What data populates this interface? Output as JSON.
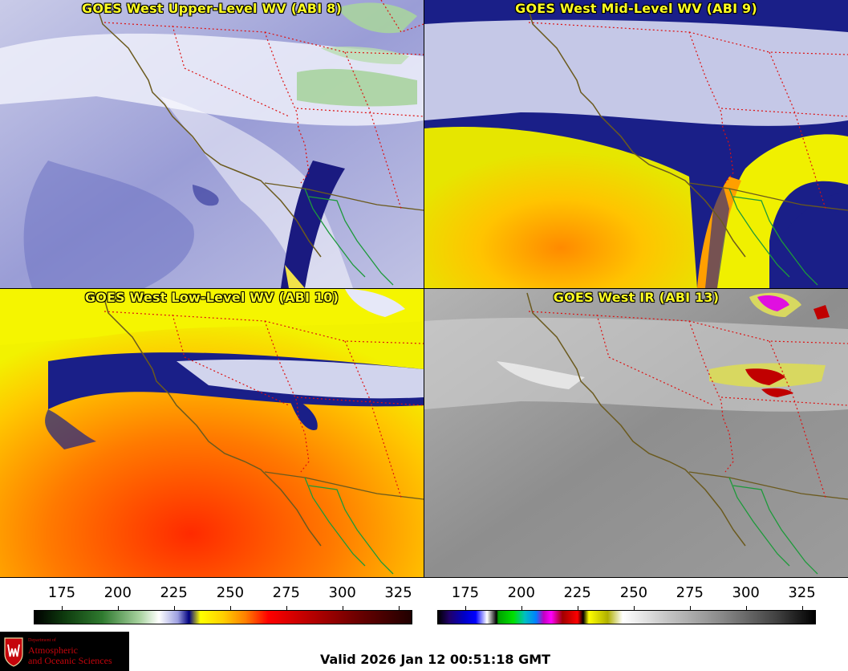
{
  "panels": [
    {
      "id": "upper",
      "title": "GOES West Upper-Level WV (ABI 8)"
    },
    {
      "id": "mid",
      "title": "GOES West Mid-Level WV (ABI 9)"
    },
    {
      "id": "low",
      "title": "GOES West Low-Level WV (ABI 10)"
    },
    {
      "id": "ir",
      "title": "GOES West IR (ABI 13)"
    }
  ],
  "colorbars": {
    "wv": {
      "ticks": [
        "175",
        "200",
        "225",
        "250",
        "275",
        "300",
        "325"
      ]
    },
    "ir": {
      "ticks": [
        "175",
        "200",
        "225",
        "250",
        "275",
        "300",
        "325"
      ]
    }
  },
  "logo": {
    "dept": "Department of",
    "name_line1": "Atmospheric",
    "name_line2": "and Oceanic Sciences"
  },
  "footer": {
    "valid_time": "Valid 2026 Jan 12 00:51:18 GMT"
  },
  "colors": {
    "title": "#ffff22",
    "state_border": "#dd1111",
    "coastline": "#6b5a1e",
    "mexico_coast": "#1d9a3a"
  }
}
